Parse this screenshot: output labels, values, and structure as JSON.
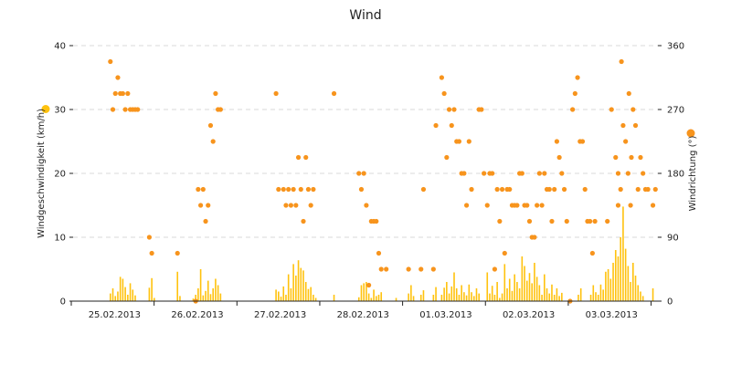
{
  "chart_data": {
    "type": "bar+scatter",
    "title": "Wind",
    "ylabel_left": "Windgeschwindigkeit (km/h)",
    "ylabel_right": "Windrichtung (°)",
    "ylim_left": [
      0,
      40
    ],
    "ylim_right": [
      0,
      360
    ],
    "yticks_left": [
      "0",
      "10",
      "20",
      "30",
      "40"
    ],
    "yticks_right": [
      "0",
      "90",
      "180",
      "270",
      "360"
    ],
    "xlim": [
      0,
      7.06
    ],
    "xtick_labels": [
      "25.02.2013",
      "26.02.2013",
      "27.02.2013",
      "28.02.2013",
      "01.03.2013",
      "02.03.2013",
      "03.03.2013"
    ],
    "grid": true,
    "colors": {
      "speed": "#ffc20e",
      "direction": "#f7941d"
    },
    "series": [
      {
        "type": "bar",
        "axis": "left",
        "values": [
          [
            0.45,
            1.2
          ],
          [
            0.48,
            2.0
          ],
          [
            0.51,
            0.8
          ],
          [
            0.54,
            1.5
          ],
          [
            0.57,
            3.8
          ],
          [
            0.6,
            3.5
          ],
          [
            0.63,
            2.2
          ],
          [
            0.66,
            1.0
          ],
          [
            0.69,
            2.8
          ],
          [
            0.72,
            1.8
          ],
          [
            0.75,
            0.9
          ],
          [
            0.92,
            2.1
          ],
          [
            0.95,
            3.6
          ],
          [
            0.98,
            0.5
          ],
          [
            1.26,
            4.6
          ],
          [
            1.29,
            0.8
          ],
          [
            1.45,
            0.4
          ],
          [
            1.48,
            1.0
          ],
          [
            1.51,
            2.0
          ],
          [
            1.54,
            5.0
          ],
          [
            1.57,
            0.9
          ],
          [
            1.6,
            1.6
          ],
          [
            1.63,
            3.2
          ],
          [
            1.66,
            1.1
          ],
          [
            1.69,
            2.0
          ],
          [
            1.72,
            3.5
          ],
          [
            1.75,
            2.5
          ],
          [
            1.78,
            1.2
          ],
          [
            2.45,
            1.8
          ],
          [
            2.48,
            1.5
          ],
          [
            2.51,
            0.7
          ],
          [
            2.54,
            2.3
          ],
          [
            2.57,
            1.0
          ],
          [
            2.6,
            4.2
          ],
          [
            2.63,
            2.0
          ],
          [
            2.66,
            5.8
          ],
          [
            2.69,
            4.0
          ],
          [
            2.72,
            6.4
          ],
          [
            2.75,
            5.2
          ],
          [
            2.78,
            4.8
          ],
          [
            2.81,
            3.0
          ],
          [
            2.84,
            1.9
          ],
          [
            2.87,
            2.2
          ],
          [
            2.9,
            1.0
          ],
          [
            2.93,
            0.5
          ],
          [
            3.15,
            1.0
          ],
          [
            3.45,
            0.6
          ],
          [
            3.48,
            2.5
          ],
          [
            3.51,
            2.8
          ],
          [
            3.54,
            3.0
          ],
          [
            3.57,
            1.2
          ],
          [
            3.6,
            0.5
          ],
          [
            3.63,
            1.8
          ],
          [
            3.66,
            0.8
          ],
          [
            3.69,
            1.0
          ],
          [
            3.72,
            1.4
          ],
          [
            3.9,
            0.5
          ],
          [
            4.05,
            1.2
          ],
          [
            4.08,
            2.5
          ],
          [
            4.11,
            0.8
          ],
          [
            4.2,
            1.0
          ],
          [
            4.23,
            1.7
          ],
          [
            4.35,
            1.0
          ],
          [
            4.38,
            2.2
          ],
          [
            4.45,
            1.0
          ],
          [
            4.48,
            2.1
          ],
          [
            4.51,
            3.0
          ],
          [
            4.54,
            1.2
          ],
          [
            4.57,
            2.3
          ],
          [
            4.6,
            4.5
          ],
          [
            4.63,
            2.0
          ],
          [
            4.66,
            1.0
          ],
          [
            4.69,
            2.5
          ],
          [
            4.72,
            1.4
          ],
          [
            4.75,
            0.9
          ],
          [
            4.78,
            2.6
          ],
          [
            4.81,
            1.4
          ],
          [
            4.84,
            0.8
          ],
          [
            4.87,
            2.0
          ],
          [
            4.9,
            1.2
          ],
          [
            5.0,
            4.5
          ],
          [
            5.03,
            1.2
          ],
          [
            5.06,
            2.4
          ],
          [
            5.09,
            1.0
          ],
          [
            5.12,
            3.0
          ],
          [
            5.15,
            0.5
          ],
          [
            5.18,
            1.2
          ],
          [
            5.21,
            5.8
          ],
          [
            5.24,
            2.0
          ],
          [
            5.27,
            3.5
          ],
          [
            5.3,
            1.6
          ],
          [
            5.33,
            4.2
          ],
          [
            5.36,
            3.0
          ],
          [
            5.39,
            2.0
          ],
          [
            5.42,
            7.0
          ],
          [
            5.45,
            5.5
          ],
          [
            5.48,
            3.2
          ],
          [
            5.51,
            4.4
          ],
          [
            5.54,
            2.8
          ],
          [
            5.57,
            6.0
          ],
          [
            5.6,
            3.8
          ],
          [
            5.63,
            2.5
          ],
          [
            5.66,
            1.0
          ],
          [
            5.69,
            4.2
          ],
          [
            5.72,
            2.0
          ],
          [
            5.75,
            1.2
          ],
          [
            5.78,
            2.6
          ],
          [
            5.81,
            1.0
          ],
          [
            5.84,
            2.0
          ],
          [
            5.87,
            0.8
          ],
          [
            5.9,
            1.3
          ],
          [
            6.1,
            1.0
          ],
          [
            6.13,
            2.0
          ],
          [
            6.25,
            1.0
          ],
          [
            6.28,
            2.5
          ],
          [
            6.31,
            1.4
          ],
          [
            6.34,
            1.0
          ],
          [
            6.37,
            2.6
          ],
          [
            6.4,
            1.8
          ],
          [
            6.43,
            4.6
          ],
          [
            6.46,
            5.0
          ],
          [
            6.49,
            3.5
          ],
          [
            6.52,
            6.0
          ],
          [
            6.55,
            8.0
          ],
          [
            6.58,
            7.0
          ],
          [
            6.61,
            10.0
          ],
          [
            6.64,
            14.8
          ],
          [
            6.67,
            8.2
          ],
          [
            6.7,
            5.5
          ],
          [
            6.73,
            3.0
          ],
          [
            6.76,
            6.0
          ],
          [
            6.79,
            4.0
          ],
          [
            6.82,
            2.5
          ],
          [
            6.85,
            1.5
          ],
          [
            6.88,
            0.8
          ],
          [
            7.0,
            2.0
          ]
        ]
      },
      {
        "type": "scatter",
        "axis": "right",
        "points": [
          [
            0.45,
            337.5
          ],
          [
            0.48,
            270
          ],
          [
            0.51,
            292.5
          ],
          [
            0.54,
            315
          ],
          [
            0.57,
            292.5
          ],
          [
            0.6,
            292.5
          ],
          [
            0.63,
            270
          ],
          [
            0.66,
            292.5
          ],
          [
            0.69,
            270
          ],
          [
            0.72,
            270
          ],
          [
            0.75,
            270
          ],
          [
            0.78,
            270
          ],
          [
            0.92,
            90
          ],
          [
            0.95,
            67.5
          ],
          [
            1.26,
            67.5
          ],
          [
            1.48,
            0
          ],
          [
            1.51,
            157.5
          ],
          [
            1.54,
            135
          ],
          [
            1.57,
            157.5
          ],
          [
            1.6,
            112.5
          ],
          [
            1.63,
            135
          ],
          [
            1.66,
            247.5
          ],
          [
            1.69,
            225
          ],
          [
            1.72,
            292.5
          ],
          [
            1.75,
            270
          ],
          [
            1.78,
            270
          ],
          [
            2.45,
            292.5
          ],
          [
            2.48,
            157.5
          ],
          [
            2.54,
            157.5
          ],
          [
            2.57,
            135
          ],
          [
            2.6,
            157.5
          ],
          [
            2.63,
            135
          ],
          [
            2.66,
            157.5
          ],
          [
            2.69,
            135
          ],
          [
            2.72,
            202.5
          ],
          [
            2.75,
            157.5
          ],
          [
            2.78,
            112.5
          ],
          [
            2.81,
            202.5
          ],
          [
            2.84,
            157.5
          ],
          [
            2.87,
            135
          ],
          [
            2.9,
            157.5
          ],
          [
            3.15,
            292.5
          ],
          [
            3.45,
            180
          ],
          [
            3.48,
            157.5
          ],
          [
            3.51,
            180
          ],
          [
            3.54,
            135
          ],
          [
            3.57,
            22.5
          ],
          [
            3.6,
            112.5
          ],
          [
            3.63,
            112.5
          ],
          [
            3.66,
            112.5
          ],
          [
            3.69,
            67.5
          ],
          [
            3.72,
            45
          ],
          [
            3.78,
            45
          ],
          [
            4.05,
            45
          ],
          [
            4.2,
            45
          ],
          [
            4.23,
            157.5
          ],
          [
            4.35,
            45
          ],
          [
            4.38,
            247.5
          ],
          [
            4.45,
            315
          ],
          [
            4.48,
            292.5
          ],
          [
            4.51,
            202.5
          ],
          [
            4.54,
            270
          ],
          [
            4.57,
            247.5
          ],
          [
            4.6,
            270
          ],
          [
            4.63,
            225
          ],
          [
            4.66,
            225
          ],
          [
            4.69,
            180
          ],
          [
            4.72,
            180
          ],
          [
            4.75,
            135
          ],
          [
            4.78,
            225
          ],
          [
            4.81,
            157.5
          ],
          [
            4.9,
            270
          ],
          [
            4.93,
            270
          ],
          [
            4.96,
            180
          ],
          [
            5.0,
            135
          ],
          [
            5.03,
            180
          ],
          [
            5.06,
            180
          ],
          [
            5.09,
            45
          ],
          [
            5.12,
            157.5
          ],
          [
            5.15,
            112.5
          ],
          [
            5.18,
            157.5
          ],
          [
            5.21,
            67.5
          ],
          [
            5.24,
            157.5
          ],
          [
            5.27,
            157.5
          ],
          [
            5.3,
            135
          ],
          [
            5.33,
            135
          ],
          [
            5.36,
            135
          ],
          [
            5.39,
            180
          ],
          [
            5.42,
            180
          ],
          [
            5.45,
            135
          ],
          [
            5.48,
            135
          ],
          [
            5.51,
            112.5
          ],
          [
            5.54,
            90
          ],
          [
            5.57,
            90
          ],
          [
            5.6,
            135
          ],
          [
            5.63,
            180
          ],
          [
            5.66,
            135
          ],
          [
            5.69,
            180
          ],
          [
            5.72,
            157.5
          ],
          [
            5.75,
            157.5
          ],
          [
            5.78,
            112.5
          ],
          [
            5.81,
            157.5
          ],
          [
            5.84,
            225
          ],
          [
            5.87,
            202.5
          ],
          [
            5.9,
            180
          ],
          [
            5.93,
            157.5
          ],
          [
            5.96,
            112.5
          ],
          [
            6.0,
            0
          ],
          [
            6.03,
            270
          ],
          [
            6.06,
            292.5
          ],
          [
            6.09,
            315
          ],
          [
            6.12,
            225
          ],
          [
            6.15,
            225
          ],
          [
            6.18,
            157.5
          ],
          [
            6.21,
            112.5
          ],
          [
            6.24,
            112.5
          ],
          [
            6.27,
            67.5
          ],
          [
            6.3,
            112.5
          ],
          [
            6.45,
            112.5
          ],
          [
            6.55,
            202.5
          ],
          [
            6.58,
            180
          ],
          [
            6.61,
            157.5
          ],
          [
            6.64,
            247.5
          ],
          [
            6.67,
            225
          ],
          [
            6.7,
            180
          ],
          [
            6.73,
            135
          ],
          [
            6.76,
            270
          ],
          [
            6.79,
            247.5
          ],
          [
            6.82,
            157.5
          ],
          [
            6.85,
            202.5
          ],
          [
            6.88,
            180
          ],
          [
            6.91,
            157.5
          ],
          [
            6.94,
            157.5
          ],
          [
            7.0,
            135
          ],
          [
            7.03,
            157.5
          ],
          [
            6.62,
            337.5
          ],
          [
            6.58,
            135
          ],
          [
            6.71,
            292.5
          ],
          [
            6.74,
            202.5
          ],
          [
            6.5,
            270
          ]
        ]
      }
    ]
  }
}
